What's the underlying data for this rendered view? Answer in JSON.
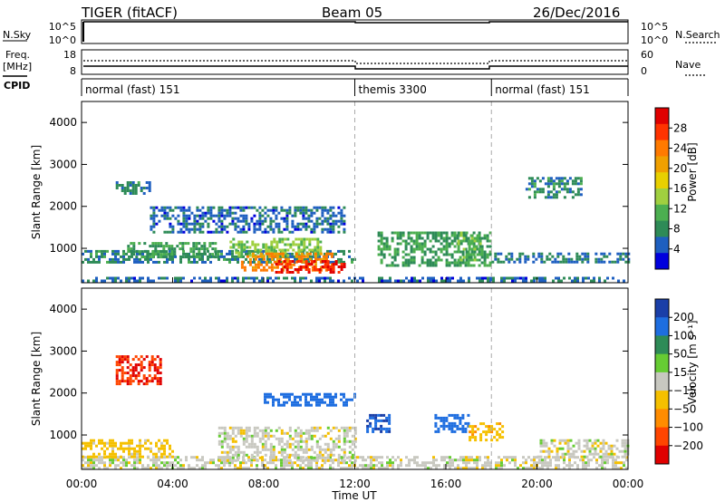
{
  "header": {
    "station": "TIGER (fitACF)",
    "beam": "Beam 05",
    "date": "26/Dec/2016"
  },
  "noise_panel": {
    "left_label": "N.Sky",
    "right_label": "N.Search",
    "left_ticks": [
      "10^5",
      "10^0"
    ],
    "right_ticks": [
      "10^5",
      "10^0"
    ]
  },
  "freq_panel": {
    "left_label_line1": "Freq.",
    "left_label_line2": "[MHz]",
    "right_label": "Nave",
    "left_ticks": [
      "18",
      "8"
    ],
    "right_ticks": [
      "60",
      "0"
    ]
  },
  "cpid": {
    "label": "CPID",
    "segments": [
      {
        "start_h": 0,
        "end_h": 12,
        "label": "normal (fast) 151"
      },
      {
        "start_h": 12,
        "end_h": 18,
        "label": "themis 3300"
      },
      {
        "start_h": 18,
        "end_h": 24,
        "label": "normal (fast) 151"
      }
    ]
  },
  "power_panel": {
    "ylabel": "Slant Range [km]",
    "colorbar_label": "Power [dB]",
    "colorbar_ticks": [
      "28",
      "24",
      "20",
      "16",
      "12",
      "8",
      "4"
    ],
    "colorbar_colors": [
      "#e00000",
      "#ff3300",
      "#ff7a00",
      "#f0a000",
      "#e8d000",
      "#a0d040",
      "#4caf50",
      "#2e8b57",
      "#1e5fc0",
      "#0000dd"
    ]
  },
  "velocity_panel": {
    "ylabel": "Slant Range [km]",
    "colorbar_label": "Velocity [m s⁻¹]",
    "colorbar_ticks": [
      "200",
      "100",
      "50",
      "15",
      "−15",
      "−50",
      "−100",
      "−200"
    ],
    "colorbar_colors": [
      "#1a3fa8",
      "#1e6ee0",
      "#2e8b57",
      "#66cc33",
      "#c8c8c0",
      "#f5c000",
      "#ff8c00",
      "#ff4500",
      "#e00000"
    ]
  },
  "x_axis": {
    "label": "Time UT",
    "ticks": [
      "00:00",
      "04:00",
      "08:00",
      "12:00",
      "16:00",
      "20:00",
      "00:00"
    ]
  },
  "chart_data": {
    "type": "heatmap",
    "x_range_hours": [
      0,
      24
    ],
    "y_range_km": [
      180,
      4500
    ],
    "y_ticks": [
      1000,
      2000,
      3000,
      4000
    ],
    "vertical_markers_hours": [
      12,
      18
    ],
    "power_regions": [
      {
        "t": [
          0,
          24
        ],
        "r": [
          200,
          320
        ],
        "value_db": 6
      },
      {
        "t": [
          0,
          12
        ],
        "r": [
          700,
          960
        ],
        "value_db": 8
      },
      {
        "t": [
          2,
          6
        ],
        "r": [
          800,
          1150
        ],
        "value_db": 10
      },
      {
        "t": [
          6.5,
          10.5
        ],
        "r": [
          800,
          1250
        ],
        "value_db": 14
      },
      {
        "t": [
          7,
          11
        ],
        "r": [
          450,
          900
        ],
        "value_db": 24
      },
      {
        "t": [
          8.5,
          11.5
        ],
        "r": [
          400,
          720
        ],
        "value_db": 30
      },
      {
        "t": [
          3,
          11.5
        ],
        "r": [
          1400,
          2000
        ],
        "value_db": 6
      },
      {
        "t": [
          1.5,
          3
        ],
        "r": [
          2300,
          2600
        ],
        "value_db": 8
      },
      {
        "t": [
          13,
          18
        ],
        "r": [
          600,
          1400
        ],
        "value_db": 10
      },
      {
        "t": [
          16.5,
          17.5
        ],
        "r": [
          700,
          1400
        ],
        "value_db": 12
      },
      {
        "t": [
          18,
          24
        ],
        "r": [
          700,
          900
        ],
        "value_db": 7
      },
      {
        "t": [
          19.5,
          22
        ],
        "r": [
          2200,
          2700
        ],
        "value_db": 8
      }
    ],
    "velocity_regions": [
      {
        "t": [
          0,
          24
        ],
        "r": [
          200,
          500
        ],
        "value_ms": 0
      },
      {
        "t": [
          6,
          12
        ],
        "r": [
          400,
          1200
        ],
        "value_ms": 0
      },
      {
        "t": [
          1.5,
          3.5
        ],
        "r": [
          2200,
          2900
        ],
        "value_ms": -150
      },
      {
        "t": [
          8,
          12
        ],
        "r": [
          1700,
          2000
        ],
        "value_ms": 120
      },
      {
        "t": [
          12.5,
          13.5
        ],
        "r": [
          1100,
          1500
        ],
        "value_ms": 150
      },
      {
        "t": [
          15.5,
          17
        ],
        "r": [
          1100,
          1500
        ],
        "value_ms": 120
      },
      {
        "t": [
          17,
          18.5
        ],
        "r": [
          900,
          1300
        ],
        "value_ms": -40
      },
      {
        "t": [
          0,
          4
        ],
        "r": [
          500,
          900
        ],
        "value_ms": -30
      },
      {
        "t": [
          20,
          24
        ],
        "r": [
          500,
          900
        ],
        "value_ms": 0
      }
    ]
  }
}
